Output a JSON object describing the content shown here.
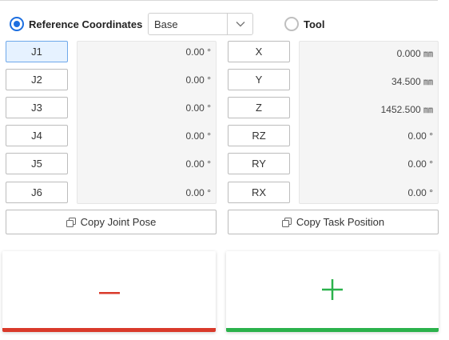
{
  "header": {
    "reference_label": "Reference Coordinates",
    "frame_select_value": "Base",
    "tool_label": "Tool"
  },
  "joints": [
    {
      "label": "J1",
      "value": "0.00 °",
      "active": true
    },
    {
      "label": "J2",
      "value": "0.00 °",
      "active": false
    },
    {
      "label": "J3",
      "value": "0.00 °",
      "active": false
    },
    {
      "label": "J4",
      "value": "0.00 °",
      "active": false
    },
    {
      "label": "J5",
      "value": "0.00 °",
      "active": false
    },
    {
      "label": "J6",
      "value": "0.00 °",
      "active": false
    }
  ],
  "task_axes": [
    {
      "label": "X",
      "value": "0.000 ㎜"
    },
    {
      "label": "Y",
      "value": "34.500 ㎜"
    },
    {
      "label": "Z",
      "value": "1452.500 ㎜"
    },
    {
      "label": "RZ",
      "value": "0.00 °"
    },
    {
      "label": "RY",
      "value": "0.00 °"
    },
    {
      "label": "RX",
      "value": "0.00 °"
    }
  ],
  "actions": {
    "copy_joint_label": "Copy Joint Pose",
    "copy_task_label": "Copy Task Position"
  },
  "jog": {
    "minus_symbol": "−",
    "plus_symbol": "+",
    "minus_color": "#d93a2b",
    "plus_color": "#2bb24c"
  },
  "colors": {
    "accent": "#1d6fe0",
    "active_button_bg": "#e6f2ff"
  }
}
